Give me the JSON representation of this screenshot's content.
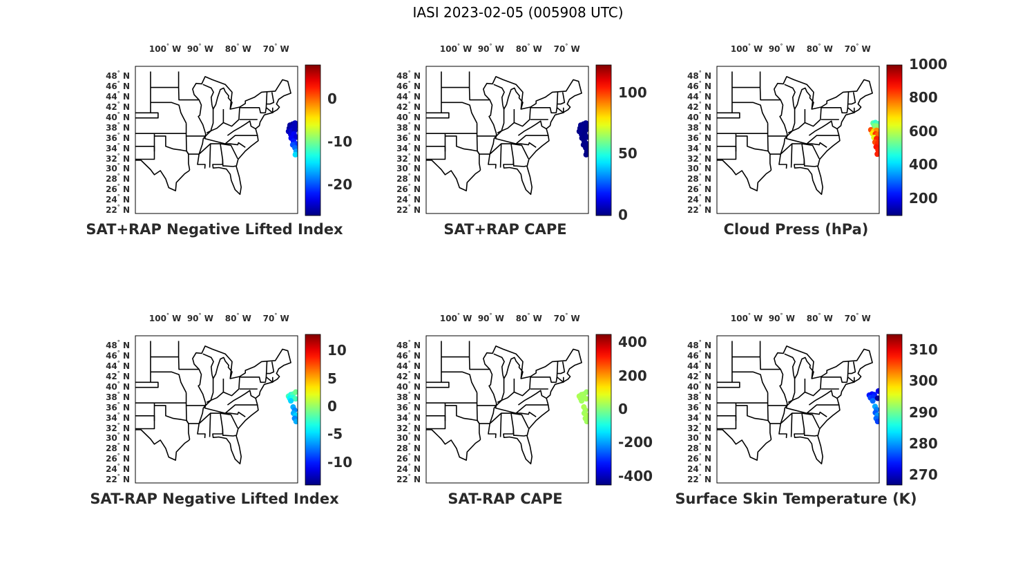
{
  "title": "IASI 2023-02-05 (005908 UTC)",
  "longitude_labels": [
    "100° W",
    "90° W",
    "80° W",
    "70° W"
  ],
  "latitude_labels": [
    "48° N",
    "46° N",
    "44° N",
    "42° N",
    "40° N",
    "38° N",
    "36° N",
    "34° N",
    "32° N",
    "30° N",
    "28° N",
    "26° N",
    "24° N",
    "22° N"
  ],
  "colormap": "jet",
  "panels": [
    {
      "id": "p1",
      "title": "SAT+RAP Negative Lifted Index",
      "colorbar": {
        "min": -27,
        "max": 8,
        "ticks": [
          0,
          -10,
          -20
        ],
        "tick_labels": [
          "0",
          "-10",
          "-20"
        ]
      },
      "points": [
        {
          "lon": -67.2,
          "lat": 38.6,
          "v": -26
        },
        {
          "lon": -66.5,
          "lat": 38.8,
          "v": -26
        },
        {
          "lon": -65.9,
          "lat": 39.0,
          "v": -25
        },
        {
          "lon": -67.4,
          "lat": 38.0,
          "v": -26
        },
        {
          "lon": -66.6,
          "lat": 38.2,
          "v": -25
        },
        {
          "lon": -65.8,
          "lat": 38.3,
          "v": -25
        },
        {
          "lon": -67.6,
          "lat": 37.4,
          "v": -25
        },
        {
          "lon": -66.8,
          "lat": 37.5,
          "v": -24
        },
        {
          "lon": -66.0,
          "lat": 37.6,
          "v": -25
        },
        {
          "lon": -67.0,
          "lat": 36.8,
          "v": -24
        },
        {
          "lon": -66.2,
          "lat": 36.9,
          "v": -23
        },
        {
          "lon": -65.6,
          "lat": 36.3,
          "v": -24
        },
        {
          "lon": -66.9,
          "lat": 36.1,
          "v": -23
        },
        {
          "lon": -66.3,
          "lat": 35.5,
          "v": -22
        },
        {
          "lon": -65.7,
          "lat": 35.0,
          "v": -21
        },
        {
          "lon": -66.5,
          "lat": 34.8,
          "v": -20
        },
        {
          "lon": -65.9,
          "lat": 34.2,
          "v": -19
        },
        {
          "lon": -65.6,
          "lat": 33.5,
          "v": -17
        },
        {
          "lon": -65.8,
          "lat": 32.9,
          "v": -15
        }
      ]
    },
    {
      "id": "p2",
      "title": "SAT+RAP CAPE",
      "colorbar": {
        "min": 0,
        "max": 123,
        "ticks": [
          100,
          50,
          0
        ],
        "tick_labels": [
          "100",
          "50",
          "0"
        ]
      },
      "points": [
        {
          "lon": -67.2,
          "lat": 38.6,
          "v": 2
        },
        {
          "lon": -66.5,
          "lat": 38.8,
          "v": 1
        },
        {
          "lon": -65.9,
          "lat": 39.0,
          "v": 2
        },
        {
          "lon": -67.4,
          "lat": 38.0,
          "v": 1
        },
        {
          "lon": -66.6,
          "lat": 38.2,
          "v": 2
        },
        {
          "lon": -65.8,
          "lat": 38.3,
          "v": 1
        },
        {
          "lon": -67.6,
          "lat": 37.4,
          "v": 1
        },
        {
          "lon": -66.8,
          "lat": 37.5,
          "v": 2
        },
        {
          "lon": -66.0,
          "lat": 37.6,
          "v": 1
        },
        {
          "lon": -67.0,
          "lat": 36.8,
          "v": 2
        },
        {
          "lon": -66.2,
          "lat": 36.9,
          "v": 1
        },
        {
          "lon": -65.6,
          "lat": 36.3,
          "v": 2
        },
        {
          "lon": -66.9,
          "lat": 36.1,
          "v": 1
        },
        {
          "lon": -66.3,
          "lat": 35.5,
          "v": 1
        },
        {
          "lon": -65.7,
          "lat": 35.0,
          "v": 2
        },
        {
          "lon": -66.5,
          "lat": 34.8,
          "v": 1
        },
        {
          "lon": -65.9,
          "lat": 34.2,
          "v": 1
        },
        {
          "lon": -65.6,
          "lat": 33.5,
          "v": 1
        },
        {
          "lon": -65.8,
          "lat": 32.9,
          "v": 1
        }
      ]
    },
    {
      "id": "p3",
      "title": "Cloud Press (hPa)",
      "colorbar": {
        "min": 100,
        "max": 1000,
        "ticks": [
          1000,
          800,
          600,
          400,
          200
        ],
        "tick_labels": [
          "1000",
          "800",
          "600",
          "400",
          "200"
        ]
      },
      "points": [
        {
          "lon": -66.8,
          "lat": 39.0,
          "v": 520
        },
        {
          "lon": -66.2,
          "lat": 39.1,
          "v": 480
        },
        {
          "lon": -65.7,
          "lat": 38.9,
          "v": 500
        },
        {
          "lon": -66.5,
          "lat": 38.5,
          "v": 540
        },
        {
          "lon": -65.9,
          "lat": 38.4,
          "v": 560
        },
        {
          "lon": -67.4,
          "lat": 37.7,
          "v": 820
        },
        {
          "lon": -66.6,
          "lat": 37.5,
          "v": 700
        },
        {
          "lon": -65.9,
          "lat": 37.6,
          "v": 760
        },
        {
          "lon": -67.0,
          "lat": 37.0,
          "v": 680
        },
        {
          "lon": -66.2,
          "lat": 36.9,
          "v": 840
        },
        {
          "lon": -65.6,
          "lat": 36.8,
          "v": 800
        },
        {
          "lon": -66.6,
          "lat": 36.2,
          "v": 640
        },
        {
          "lon": -65.9,
          "lat": 36.0,
          "v": 860
        },
        {
          "lon": -66.3,
          "lat": 35.3,
          "v": 820
        },
        {
          "lon": -65.6,
          "lat": 35.1,
          "v": 850
        },
        {
          "lon": -66.0,
          "lat": 34.4,
          "v": 870
        },
        {
          "lon": -65.5,
          "lat": 33.8,
          "v": 860
        },
        {
          "lon": -65.7,
          "lat": 33.0,
          "v": 860
        }
      ]
    },
    {
      "id": "p4",
      "title": "SAT-RAP Negative Lifted Index",
      "colorbar": {
        "min": -14,
        "max": 13,
        "ticks": [
          10,
          5,
          0,
          -5,
          -10
        ],
        "tick_labels": [
          "10",
          "5",
          "0",
          "-5",
          "-10"
        ]
      },
      "points": [
        {
          "lon": -67.6,
          "lat": 38.3,
          "v": -2
        },
        {
          "lon": -67.0,
          "lat": 38.6,
          "v": -3
        },
        {
          "lon": -66.4,
          "lat": 38.7,
          "v": -2
        },
        {
          "lon": -65.7,
          "lat": 39.1,
          "v": -1
        },
        {
          "lon": -67.3,
          "lat": 37.9,
          "v": -4
        },
        {
          "lon": -66.6,
          "lat": 38.0,
          "v": -3
        },
        {
          "lon": -65.8,
          "lat": 37.8,
          "v": -2
        },
        {
          "lon": -67.0,
          "lat": 37.4,
          "v": -5
        },
        {
          "lon": -66.4,
          "lat": 36.2,
          "v": -6
        },
        {
          "lon": -66.0,
          "lat": 35.6,
          "v": -7
        },
        {
          "lon": -66.3,
          "lat": 35.0,
          "v": -6
        },
        {
          "lon": -65.7,
          "lat": 34.6,
          "v": -5
        },
        {
          "lon": -66.0,
          "lat": 34.0,
          "v": -7
        },
        {
          "lon": -65.6,
          "lat": 33.4,
          "v": -6
        }
      ]
    },
    {
      "id": "p5",
      "title": "SAT-RAP CAPE",
      "colorbar": {
        "min": -450,
        "max": 450,
        "ticks": [
          400,
          200,
          0,
          -200,
          -400
        ],
        "tick_labels": [
          "400",
          "200",
          "0",
          "-200",
          "-400"
        ]
      },
      "points": [
        {
          "lon": -67.6,
          "lat": 38.3,
          "v": 40
        },
        {
          "lon": -67.0,
          "lat": 38.6,
          "v": 30
        },
        {
          "lon": -66.4,
          "lat": 38.7,
          "v": 35
        },
        {
          "lon": -65.7,
          "lat": 39.1,
          "v": 25
        },
        {
          "lon": -67.3,
          "lat": 37.9,
          "v": 40
        },
        {
          "lon": -66.6,
          "lat": 38.0,
          "v": 30
        },
        {
          "lon": -65.8,
          "lat": 37.8,
          "v": 35
        },
        {
          "lon": -67.0,
          "lat": 37.4,
          "v": 30
        },
        {
          "lon": -66.4,
          "lat": 36.2,
          "v": 40
        },
        {
          "lon": -66.0,
          "lat": 35.6,
          "v": 35
        },
        {
          "lon": -66.3,
          "lat": 35.0,
          "v": 30
        },
        {
          "lon": -65.7,
          "lat": 34.6,
          "v": 40
        },
        {
          "lon": -66.0,
          "lat": 34.0,
          "v": 35
        },
        {
          "lon": -65.6,
          "lat": 33.4,
          "v": 30
        }
      ]
    },
    {
      "id": "p6",
      "title": "Surface Skin Temperature (K)",
      "colorbar": {
        "min": 267,
        "max": 315,
        "ticks": [
          310,
          300,
          290,
          280,
          270
        ],
        "tick_labels": [
          "310",
          "300",
          "290",
          "280",
          "270"
        ]
      },
      "points": [
        {
          "lon": -67.8,
          "lat": 38.5,
          "v": 274
        },
        {
          "lon": -67.1,
          "lat": 38.7,
          "v": 273
        },
        {
          "lon": -66.5,
          "lat": 38.6,
          "v": 274
        },
        {
          "lon": -65.4,
          "lat": 39.3,
          "v": 272
        },
        {
          "lon": -67.5,
          "lat": 38.0,
          "v": 276
        },
        {
          "lon": -66.8,
          "lat": 38.1,
          "v": 275
        },
        {
          "lon": -65.6,
          "lat": 37.9,
          "v": 268
        },
        {
          "lon": -66.9,
          "lat": 37.4,
          "v": 278
        },
        {
          "lon": -66.3,
          "lat": 36.3,
          "v": 281
        },
        {
          "lon": -65.9,
          "lat": 35.7,
          "v": 279
        },
        {
          "lon": -66.2,
          "lat": 35.1,
          "v": 277
        },
        {
          "lon": -65.7,
          "lat": 34.6,
          "v": 280
        },
        {
          "lon": -66.0,
          "lat": 34.0,
          "v": 278
        },
        {
          "lon": -65.6,
          "lat": 33.4,
          "v": 276
        }
      ]
    }
  ]
}
